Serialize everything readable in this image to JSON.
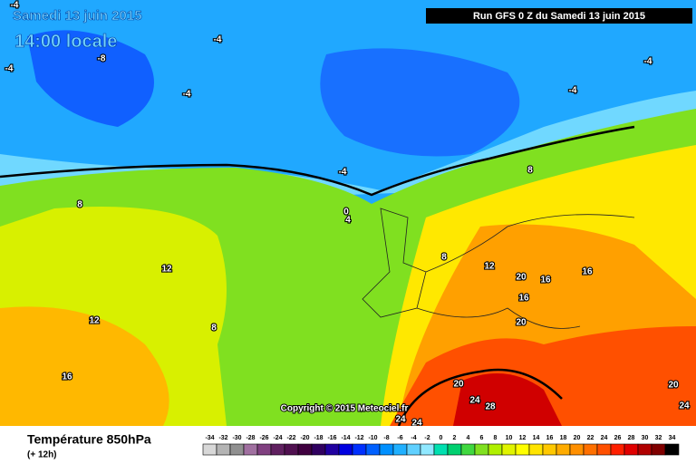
{
  "header": {
    "title": "Samedi 13 juin 2015",
    "time": "14:00 locale",
    "run": "Run GFS 0 Z du Samedi 13 juin 2015"
  },
  "copyright": "Copyright © 2015 Meteociel.fr",
  "footer": {
    "parameter": "Température 850hPa",
    "lead": "(+ 12h)"
  },
  "map": {
    "labels": [
      "-4",
      "-8",
      "-4",
      "-4",
      "-4",
      "-4",
      "-4",
      "-4",
      "0",
      "4",
      "8",
      "8",
      "12",
      "12",
      "8",
      "8",
      "12",
      "16",
      "16",
      "20",
      "16",
      "16",
      "20",
      "20",
      "24",
      "28",
      "24",
      "24",
      "20",
      "24"
    ]
  },
  "scale": {
    "values": [
      -34,
      -32,
      -30,
      -28,
      -26,
      -24,
      -22,
      -20,
      -18,
      -16,
      -14,
      -12,
      -10,
      -8,
      -6,
      -4,
      -2,
      0,
      2,
      4,
      6,
      8,
      10,
      12,
      14,
      16,
      18,
      20,
      22,
      24,
      26,
      28,
      30,
      32,
      34
    ],
    "colors": [
      "#d8d8d8",
      "#b4b4b4",
      "#909090",
      "#a070a0",
      "#804080",
      "#602060",
      "#501050",
      "#400040",
      "#300060",
      "#2000a0",
      "#0000e0",
      "#0030ff",
      "#0060ff",
      "#0090ff",
      "#20b0ff",
      "#60d0ff",
      "#90e8ff",
      "#00e0b0",
      "#00d070",
      "#40d840",
      "#80e020",
      "#b0f000",
      "#e0f400",
      "#ffff00",
      "#ffe400",
      "#ffc800",
      "#ffac00",
      "#ff9000",
      "#ff7000",
      "#ff5000",
      "#ff2000",
      "#e00000",
      "#b00000",
      "#800000",
      "#000000"
    ]
  }
}
